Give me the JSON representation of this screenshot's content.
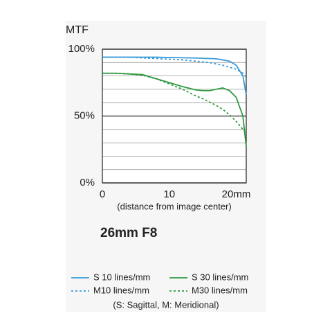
{
  "chart_data": {
    "type": "line",
    "y_label": "MTF",
    "x_label": "(distance from image center)",
    "subtitle": "26mm F8",
    "note": "(S: Sagittal, M: Meridional)",
    "x": [
      0,
      2,
      4,
      6,
      8,
      10,
      12,
      14,
      15,
      16,
      17,
      18,
      19,
      20,
      21,
      21.5
    ],
    "series": [
      {
        "name": "S 10 lines/mm",
        "color": "#3a9ad9",
        "dash": false,
        "values": [
          94,
          94,
          94,
          94,
          94,
          93.8,
          93.6,
          93.4,
          93.2,
          93,
          92.8,
          92,
          91,
          88,
          80,
          66
        ]
      },
      {
        "name": "S 30 lines/mm",
        "color": "#2e9a3f",
        "dash": false,
        "values": [
          82,
          82,
          81.5,
          81,
          78,
          75,
          72,
          69.5,
          69,
          69,
          70,
          71,
          69,
          64,
          50,
          27
        ]
      },
      {
        "name": "M10 lines/mm",
        "color": "#3a9ad9",
        "dash": true,
        "values": [
          94,
          94,
          94,
          93.5,
          93,
          92.5,
          92,
          91,
          90.5,
          90,
          89,
          88,
          86.5,
          85,
          82,
          79
        ]
      },
      {
        "name": "M30 lines/mm",
        "color": "#2e9a3f",
        "dash": true,
        "values": [
          82,
          82,
          81.5,
          80.5,
          78,
          74,
          70,
          65,
          63,
          60.5,
          58,
          55,
          51,
          46,
          40,
          37
        ]
      }
    ],
    "xlim": [
      0,
      21.5
    ],
    "ylim": [
      0,
      100
    ],
    "xticks": [
      0,
      10,
      {
        "value": 20,
        "label": "20mm"
      }
    ],
    "yticks": [
      {
        "value": 0,
        "label": "0%"
      },
      {
        "value": 50,
        "label": "50%"
      },
      {
        "value": 100,
        "label": "100%"
      }
    ],
    "grid_yticks": [
      10,
      20,
      30,
      40,
      60,
      70,
      80,
      90
    ],
    "grid": true
  }
}
